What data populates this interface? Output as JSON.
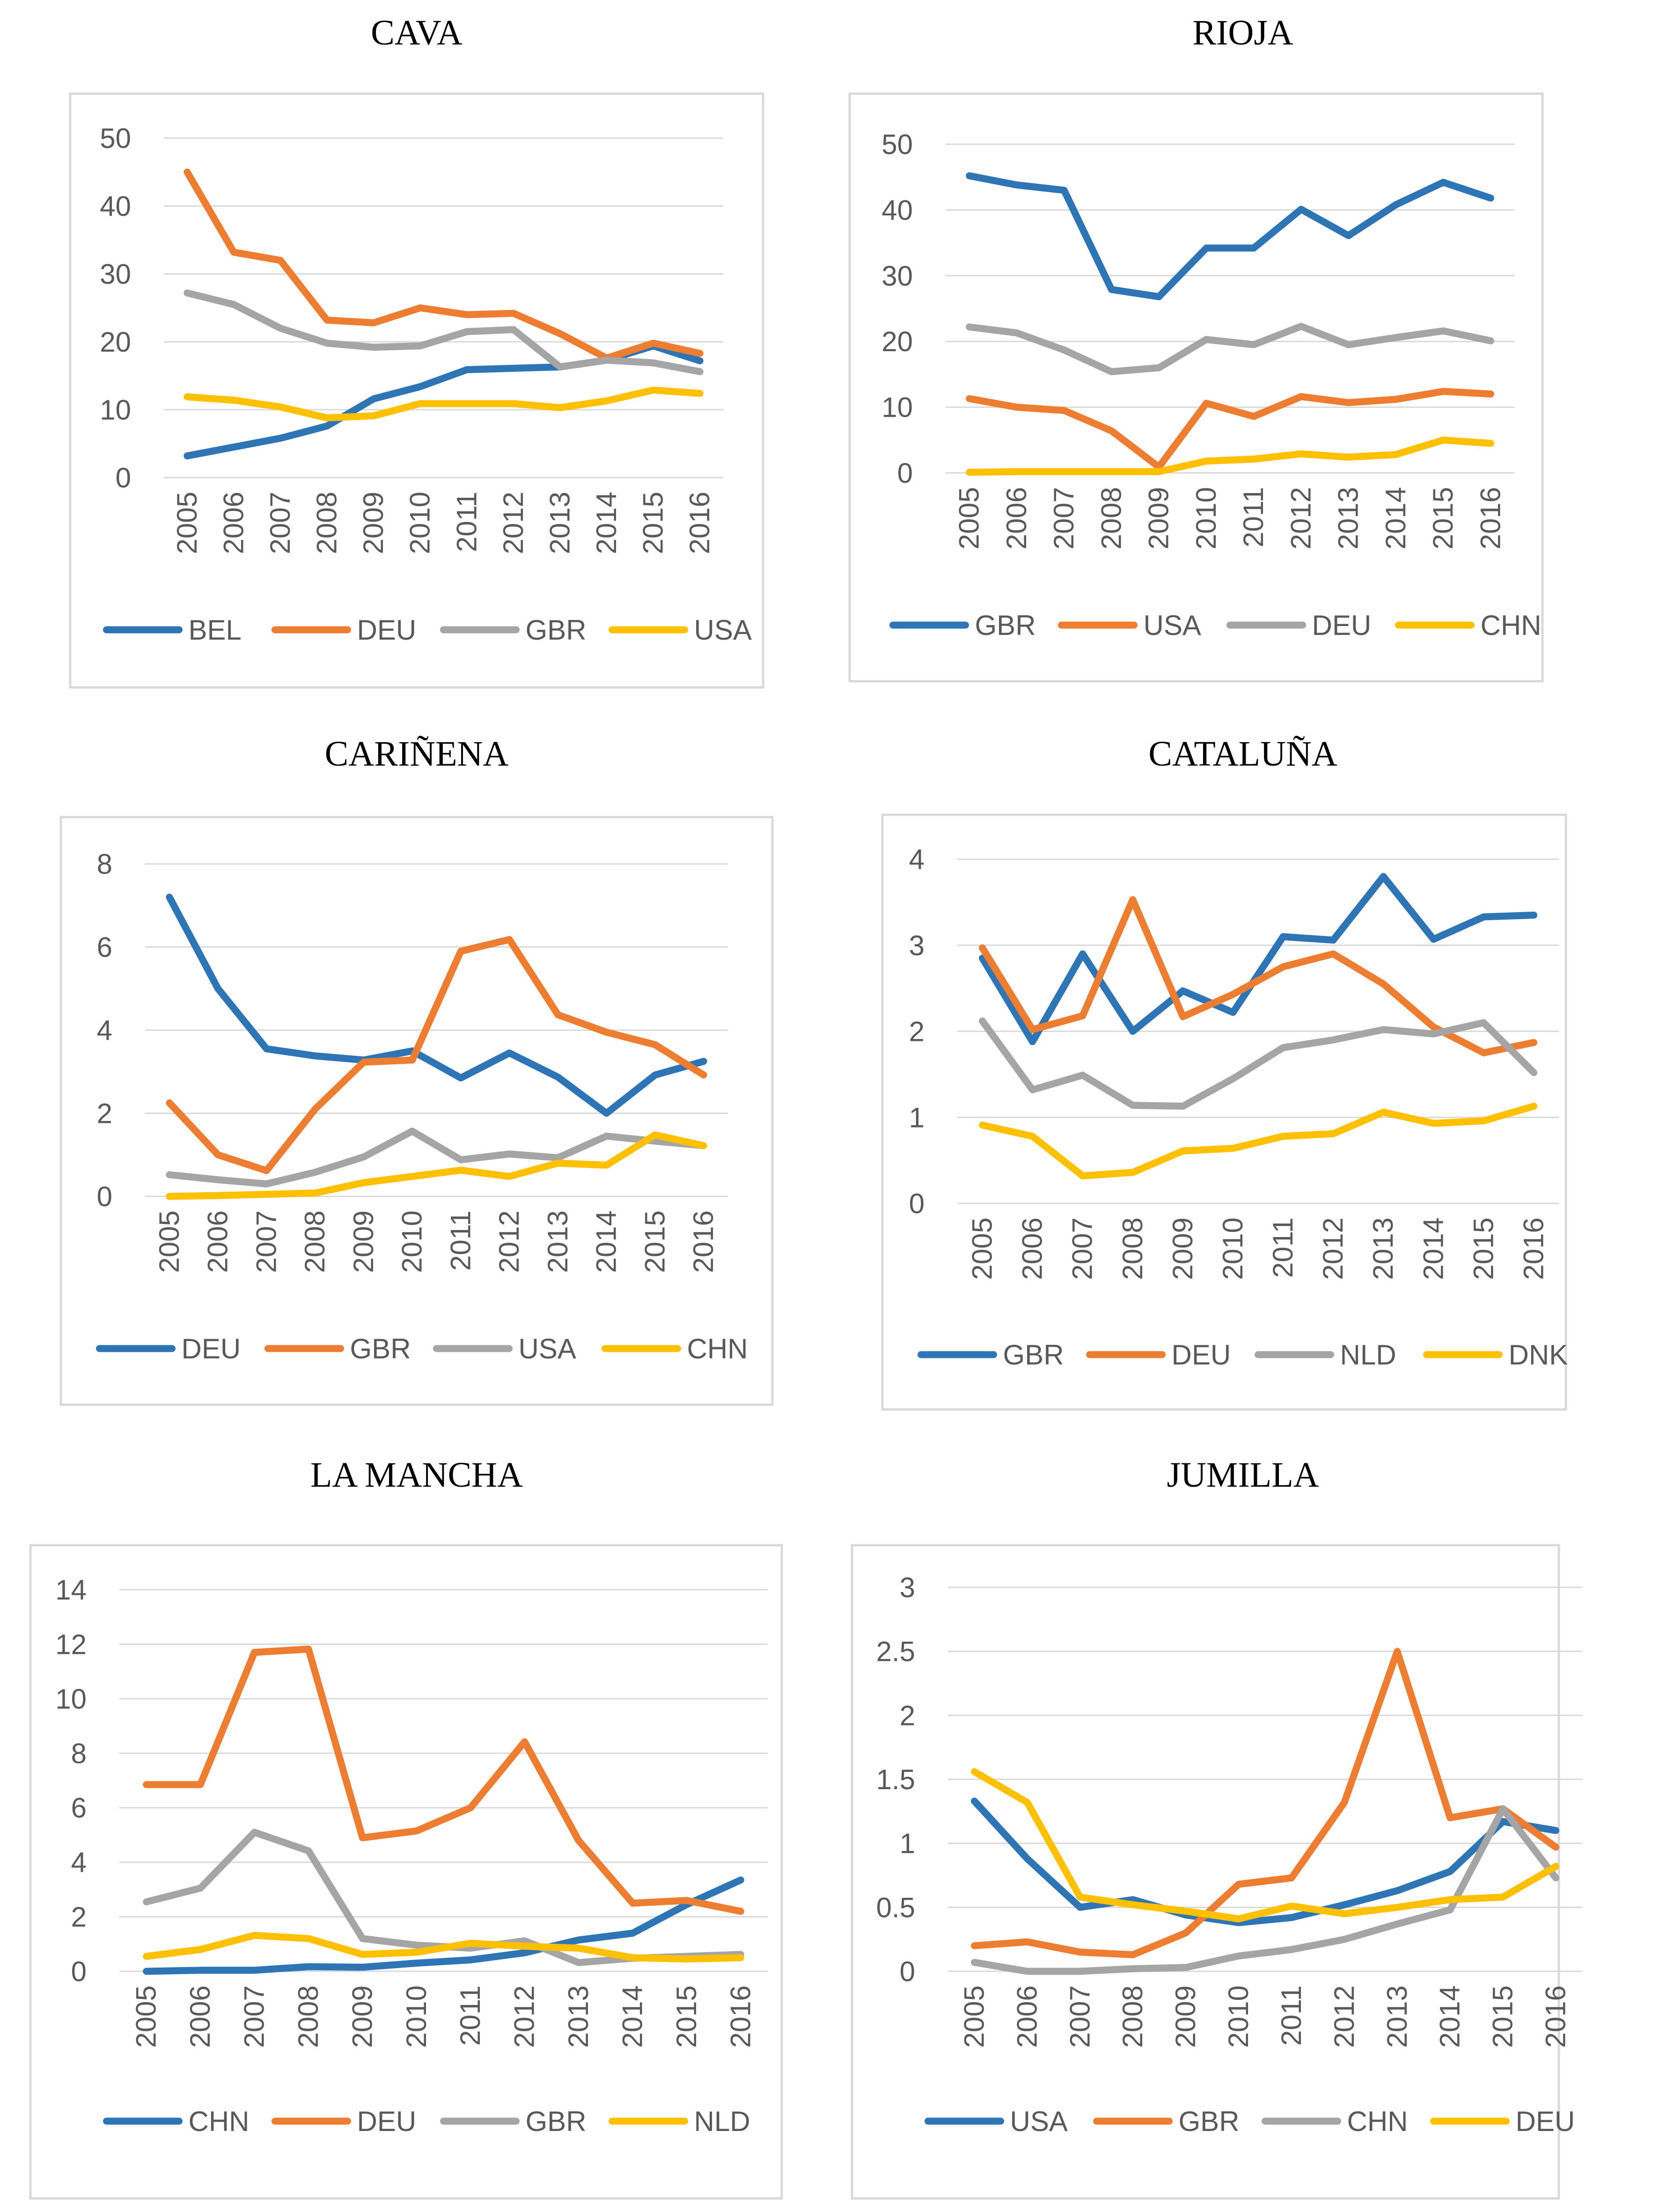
{
  "chart_data": [
    {
      "type": "line",
      "title": "CAVA",
      "x": [
        "2005",
        "2006",
        "2007",
        "2008",
        "2009",
        "2010",
        "2011",
        "2012",
        "2013",
        "2014",
        "2015",
        "2016"
      ],
      "ylim": [
        0,
        50
      ],
      "yticks": [
        "0",
        "10",
        "20",
        "30",
        "40",
        "50"
      ],
      "grid": true,
      "legend": "bottom",
      "series": [
        {
          "name": "BEL",
          "color": "#2E75B6",
          "values": [
            3.2,
            4.5,
            5.8,
            7.6,
            11.6,
            13.4,
            15.9,
            16.1,
            16.3,
            17.3,
            19.4,
            17.2
          ]
        },
        {
          "name": "DEU",
          "color": "#ED7D31",
          "values": [
            45.0,
            33.2,
            32.0,
            23.2,
            22.8,
            25.0,
            24.0,
            24.2,
            21.2,
            17.6,
            19.8,
            18.3
          ]
        },
        {
          "name": "GBR",
          "color": "#A5A5A5",
          "values": [
            27.2,
            25.5,
            22.0,
            19.8,
            19.2,
            19.4,
            21.5,
            21.8,
            16.3,
            17.3,
            16.9,
            15.6
          ]
        },
        {
          "name": "USA",
          "color": "#FFC000",
          "values": [
            11.9,
            11.4,
            10.4,
            8.8,
            9.1,
            10.9,
            10.9,
            10.9,
            10.3,
            11.3,
            12.9,
            12.4
          ]
        }
      ]
    },
    {
      "type": "line",
      "title": "RIOJA",
      "x": [
        "2005",
        "2006",
        "2007",
        "2008",
        "2009",
        "2010",
        "2011",
        "2012",
        "2013",
        "2014",
        "2015",
        "2016"
      ],
      "ylim": [
        0,
        50
      ],
      "yticks": [
        "0",
        "10",
        "20",
        "30",
        "40",
        "50"
      ],
      "grid": true,
      "legend": "bottom",
      "series": [
        {
          "name": "GBR",
          "color": "#2E75B6",
          "values": [
            45.2,
            43.8,
            43.0,
            27.9,
            26.8,
            34.2,
            34.2,
            40.1,
            36.1,
            40.8,
            44.2,
            41.8
          ]
        },
        {
          "name": "USA",
          "color": "#ED7D31",
          "values": [
            11.3,
            10.0,
            9.5,
            6.4,
            0.9,
            10.6,
            8.6,
            11.6,
            10.7,
            11.2,
            12.4,
            12.0
          ]
        },
        {
          "name": "DEU",
          "color": "#A5A5A5",
          "values": [
            22.2,
            21.3,
            18.7,
            15.4,
            16.0,
            20.3,
            19.5,
            22.3,
            19.5,
            20.6,
            21.6,
            20.1
          ]
        },
        {
          "name": "CHN",
          "color": "#FFC000",
          "values": [
            0.1,
            0.2,
            0.2,
            0.2,
            0.2,
            1.8,
            2.1,
            2.9,
            2.4,
            2.8,
            5.0,
            4.5
          ]
        }
      ]
    },
    {
      "type": "line",
      "title": "CARIÑENA",
      "x": [
        "2005",
        "2006",
        "2007",
        "2008",
        "2009",
        "2010",
        "2011",
        "2012",
        "2013",
        "2014",
        "2015",
        "2016"
      ],
      "ylim": [
        0,
        8
      ],
      "yticks": [
        "0",
        "2",
        "4",
        "6",
        "8"
      ],
      "grid": true,
      "legend": "bottom",
      "series": [
        {
          "name": "DEU",
          "color": "#2E75B6",
          "values": [
            7.2,
            5.0,
            3.55,
            3.38,
            3.28,
            3.5,
            2.85,
            3.45,
            2.87,
            2.0,
            2.92,
            3.25
          ]
        },
        {
          "name": "GBR",
          "color": "#ED7D31",
          "values": [
            2.25,
            1.0,
            0.62,
            2.1,
            3.23,
            3.28,
            5.9,
            6.18,
            4.37,
            3.95,
            3.65,
            2.92
          ]
        },
        {
          "name": "USA",
          "color": "#A5A5A5",
          "values": [
            0.52,
            0.4,
            0.3,
            0.58,
            0.95,
            1.57,
            0.88,
            1.02,
            0.93,
            1.45,
            1.33,
            1.22
          ]
        },
        {
          "name": "CHN",
          "color": "#FFC000",
          "values": [
            0.0,
            0.02,
            0.05,
            0.08,
            0.33,
            0.48,
            0.63,
            0.48,
            0.8,
            0.75,
            1.48,
            1.22
          ]
        }
      ]
    },
    {
      "type": "line",
      "title": "CATALUÑA",
      "x": [
        "2005",
        "2006",
        "2007",
        "2008",
        "2009",
        "2010",
        "2011",
        "2012",
        "2013",
        "2014",
        "2015",
        "2016"
      ],
      "ylim": [
        0,
        4
      ],
      "yticks": [
        "0",
        "1",
        "2",
        "3",
        "4"
      ],
      "grid": true,
      "legend": "bottom",
      "series": [
        {
          "name": "GBR",
          "color": "#2E75B6",
          "values": [
            2.85,
            1.88,
            2.9,
            2.0,
            2.47,
            2.22,
            3.1,
            3.06,
            3.8,
            3.07,
            3.33,
            3.35
          ]
        },
        {
          "name": "DEU",
          "color": "#ED7D31",
          "values": [
            2.97,
            2.02,
            2.18,
            3.53,
            2.17,
            2.43,
            2.75,
            2.9,
            2.55,
            2.05,
            1.75,
            1.87
          ]
        },
        {
          "name": "NLD",
          "color": "#A5A5A5",
          "values": [
            2.12,
            1.32,
            1.49,
            1.14,
            1.13,
            1.45,
            1.81,
            1.9,
            2.02,
            1.97,
            2.1,
            1.52
          ]
        },
        {
          "name": "DNK",
          "color": "#FFC000",
          "values": [
            0.91,
            0.78,
            0.32,
            0.36,
            0.61,
            0.64,
            0.78,
            0.81,
            1.06,
            0.93,
            0.96,
            1.13
          ]
        }
      ]
    },
    {
      "type": "line",
      "title": "LA MANCHA",
      "x": [
        "2005",
        "2006",
        "2007",
        "2008",
        "2009",
        "2010",
        "2011",
        "2012",
        "2013",
        "2014",
        "2015",
        "2016"
      ],
      "ylim": [
        0,
        14
      ],
      "yticks": [
        "0",
        "2",
        "4",
        "6",
        "8",
        "10",
        "12",
        "14"
      ],
      "grid": true,
      "legend": "bottom",
      "series": [
        {
          "name": "CHN",
          "color": "#2E75B6",
          "values": [
            0.0,
            0.04,
            0.04,
            0.17,
            0.15,
            0.3,
            0.42,
            0.68,
            1.15,
            1.4,
            2.45,
            3.35
          ]
        },
        {
          "name": "DEU",
          "color": "#ED7D31",
          "values": [
            6.85,
            6.85,
            11.7,
            11.82,
            4.9,
            5.15,
            6.0,
            8.42,
            4.8,
            2.5,
            2.6,
            2.2
          ]
        },
        {
          "name": "GBR",
          "color": "#A5A5A5",
          "values": [
            2.55,
            3.05,
            5.1,
            4.42,
            1.2,
            0.96,
            0.85,
            1.12,
            0.32,
            0.48,
            0.55,
            0.62
          ]
        },
        {
          "name": "NLD",
          "color": "#FFC000",
          "values": [
            0.55,
            0.8,
            1.32,
            1.2,
            0.62,
            0.7,
            1.03,
            0.92,
            0.85,
            0.5,
            0.45,
            0.5
          ]
        }
      ]
    },
    {
      "type": "line",
      "title": "JUMILLA",
      "x": [
        "2005",
        "2006",
        "2007",
        "2008",
        "2009",
        "2010",
        "2011",
        "2012",
        "2013",
        "2014",
        "2015",
        "2016"
      ],
      "ylim": [
        0,
        3
      ],
      "yticks": [
        "0",
        "0.5",
        "1",
        "1.5",
        "2",
        "2.5",
        "3"
      ],
      "grid": true,
      "legend": "bottom",
      "series": [
        {
          "name": "USA",
          "color": "#2E75B6",
          "values": [
            1.33,
            0.88,
            0.5,
            0.56,
            0.44,
            0.38,
            0.42,
            0.52,
            0.63,
            0.78,
            1.17,
            1.1
          ]
        },
        {
          "name": "GBR",
          "color": "#ED7D31",
          "values": [
            0.2,
            0.23,
            0.15,
            0.13,
            0.3,
            0.68,
            0.73,
            1.32,
            2.5,
            1.2,
            1.27,
            0.97
          ]
        },
        {
          "name": "CHN",
          "color": "#A5A5A5",
          "values": [
            0.07,
            0.0,
            0.0,
            0.02,
            0.03,
            0.12,
            0.17,
            0.25,
            0.37,
            0.48,
            1.27,
            0.73
          ]
        },
        {
          "name": "DEU",
          "color": "#FFC000",
          "values": [
            1.56,
            1.32,
            0.58,
            0.52,
            0.47,
            0.41,
            0.51,
            0.45,
            0.5,
            0.56,
            0.58,
            0.82
          ]
        }
      ]
    }
  ]
}
